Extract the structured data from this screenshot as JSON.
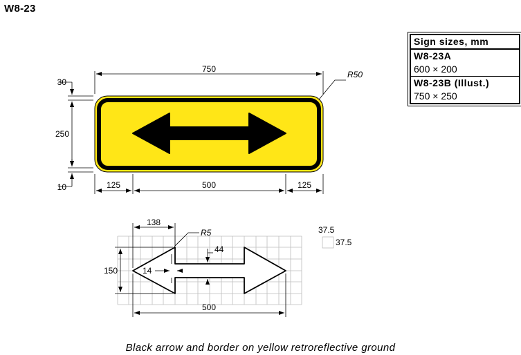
{
  "sign_id": "W8-23",
  "caption": "Black arrow and border on yellow retroreflective ground",
  "colors": {
    "ground": "#FFE617",
    "legend": "#000000",
    "grid": "#BDBDBD"
  },
  "size_table": {
    "title": "Sign sizes, mm",
    "rows": [
      {
        "name": "W8-23A",
        "size": "600 × 200"
      },
      {
        "name": "W8-23B (Illust.)",
        "size": "750 × 250"
      }
    ]
  },
  "dimensions": {
    "overall_width": "750",
    "corner_radius": "R50",
    "top_margin": "30",
    "height": "250",
    "bottom_margin": "10",
    "left_offset": "125",
    "arrow_length": "500",
    "right_offset": "125"
  },
  "arrow_detail": {
    "head_length": "138",
    "tip_radius": "R5",
    "shaft_width": "44",
    "shaft_offset": "14",
    "head_height": "150",
    "total_length": "500",
    "grid_cell_w": "37.5",
    "grid_cell_h": "37.5"
  }
}
